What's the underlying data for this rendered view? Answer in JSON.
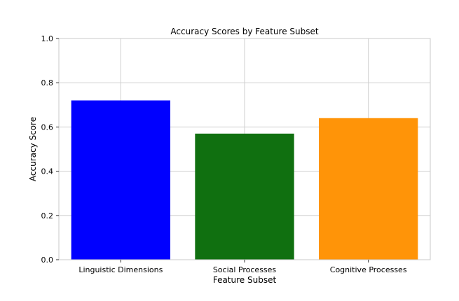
{
  "chart_data": {
    "type": "bar",
    "title": "Accuracy Scores by Feature Subset",
    "xlabel": "Feature Subset",
    "ylabel": "Accuracy Score",
    "categories": [
      "Linguistic Dimensions",
      "Social Processes",
      "Cognitive Processes"
    ],
    "values": [
      0.72,
      0.57,
      0.64
    ],
    "colors": [
      "#0000ff",
      "#107010",
      "#ff9408"
    ],
    "ylim": [
      0,
      1.0
    ],
    "yticks": [
      "0.0",
      "0.2",
      "0.4",
      "0.6",
      "0.8",
      "1.0"
    ],
    "grid": true,
    "legend": "none"
  }
}
